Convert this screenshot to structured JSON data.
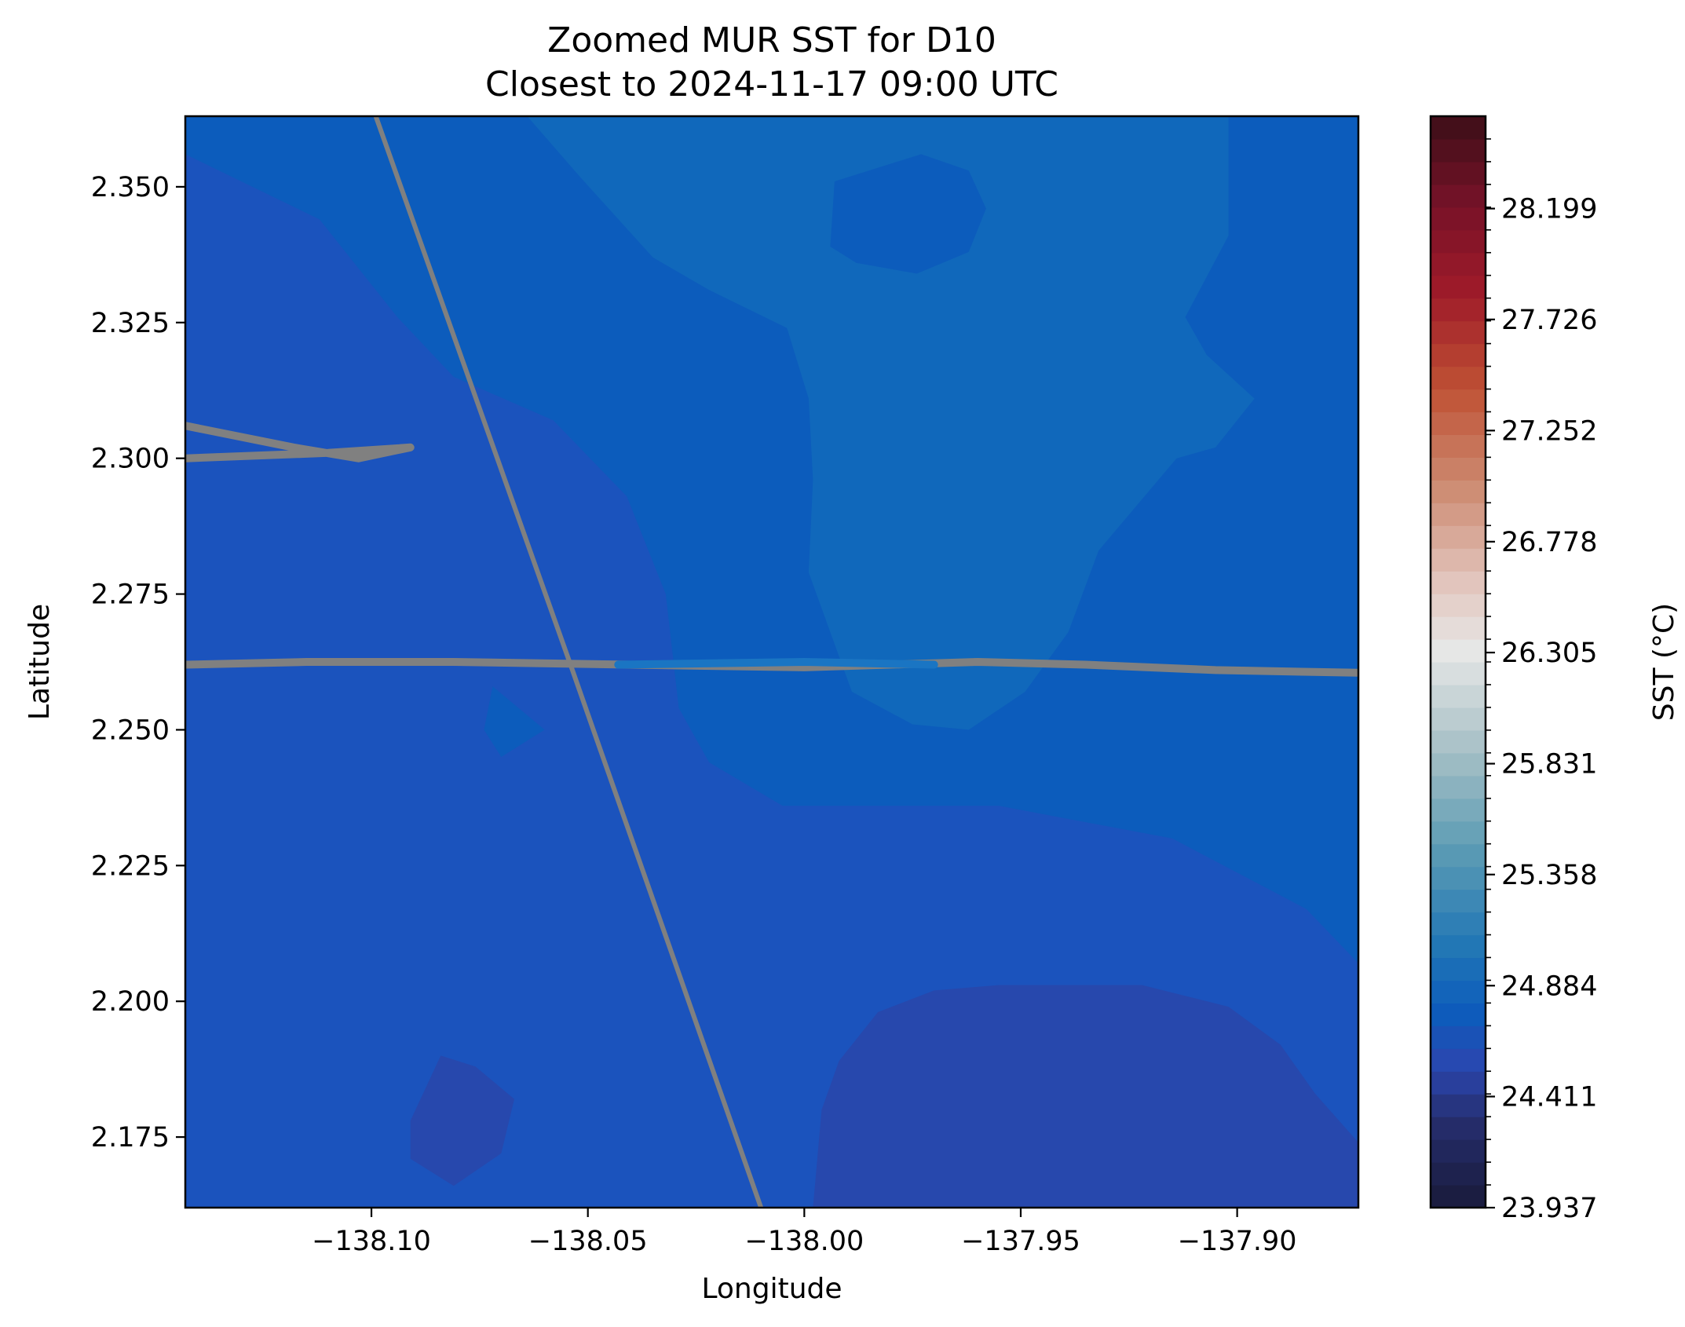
{
  "chart_data": {
    "type": "heatmap",
    "title_line1": "Zoomed MUR SST for D10",
    "title_line2": "Closest to 2024-11-17 09:00 UTC",
    "xlabel": "Longitude",
    "ylabel": "Latitude",
    "xlim": [
      -138.143,
      -137.872
    ],
    "ylim": [
      2.162,
      2.363
    ],
    "xticks": [
      {
        "value": -138.1,
        "label": "−138.10"
      },
      {
        "value": -138.05,
        "label": "−138.05"
      },
      {
        "value": -138.0,
        "label": "−138.00"
      },
      {
        "value": -137.95,
        "label": "−137.95"
      },
      {
        "value": -137.9,
        "label": "−137.90"
      }
    ],
    "yticks": [
      {
        "value": 2.175,
        "label": "2.175"
      },
      {
        "value": 2.2,
        "label": "2.200"
      },
      {
        "value": 2.225,
        "label": "2.225"
      },
      {
        "value": 2.25,
        "label": "2.250"
      },
      {
        "value": 2.275,
        "label": "2.275"
      },
      {
        "value": 2.3,
        "label": "2.300"
      },
      {
        "value": 2.325,
        "label": "2.325"
      },
      {
        "value": 2.35,
        "label": "2.350"
      }
    ],
    "colorbar": {
      "label": "SST (°C)",
      "min": 23.937,
      "max": 28.593,
      "n_levels": 48,
      "ticks": [
        {
          "value": 23.937,
          "label": "23.937"
        },
        {
          "value": 24.411,
          "label": "24.411"
        },
        {
          "value": 24.884,
          "label": "24.884"
        },
        {
          "value": 25.358,
          "label": "25.358"
        },
        {
          "value": 25.831,
          "label": "25.831"
        },
        {
          "value": 26.305,
          "label": "26.305"
        },
        {
          "value": 26.778,
          "label": "26.778"
        },
        {
          "value": 27.252,
          "label": "27.252"
        },
        {
          "value": 27.726,
          "label": "27.726"
        },
        {
          "value": 28.199,
          "label": "28.199"
        }
      ],
      "stops": [
        {
          "t": 0.0,
          "color": "#191b3a"
        },
        {
          "t": 0.08,
          "color": "#262e6e"
        },
        {
          "t": 0.13,
          "color": "#2a47b0"
        },
        {
          "t": 0.18,
          "color": "#0c5cbc"
        },
        {
          "t": 0.24,
          "color": "#2277b5"
        },
        {
          "t": 0.33,
          "color": "#5d9cb4"
        },
        {
          "t": 0.42,
          "color": "#a7c0c6"
        },
        {
          "t": 0.51,
          "color": "#e6e7e6"
        },
        {
          "t": 0.57,
          "color": "#e3c7c0"
        },
        {
          "t": 0.66,
          "color": "#cd8b72"
        },
        {
          "t": 0.75,
          "color": "#bf5134"
        },
        {
          "t": 0.84,
          "color": "#9e1a29"
        },
        {
          "t": 0.92,
          "color": "#761228"
        },
        {
          "t": 1.0,
          "color": "#3c0e18"
        }
      ]
    },
    "field_colors": {
      "level_24_41": "#2748ad",
      "level_24_51": "#1b53bd",
      "level_24_61": "#0c5cbc",
      "level_24_71": "#1068bb"
    },
    "contour_regions": [
      {
        "level": 24.51,
        "fill": "level_24_51",
        "path": [
          [
            -138.143,
            2.162
          ],
          [
            -137.872,
            2.162
          ],
          [
            -137.872,
            2.363
          ],
          [
            -138.143,
            2.363
          ]
        ]
      },
      {
        "level": 24.61,
        "fill": "level_24_61",
        "path": [
          [
            -138.101,
            2.363
          ],
          [
            -137.872,
            2.363
          ],
          [
            -137.872,
            2.207
          ],
          [
            -137.884,
            2.217
          ],
          [
            -137.915,
            2.23
          ],
          [
            -137.955,
            2.236
          ],
          [
            -137.978,
            2.236
          ],
          [
            -138.005,
            2.236
          ],
          [
            -138.022,
            2.244
          ],
          [
            -138.029,
            2.254
          ],
          [
            -138.032,
            2.275
          ],
          [
            -138.041,
            2.293
          ],
          [
            -138.058,
            2.307
          ],
          [
            -138.081,
            2.315
          ],
          [
            -138.094,
            2.326
          ],
          [
            -138.112,
            2.344
          ],
          [
            -138.143,
            2.356
          ],
          [
            -138.143,
            2.363
          ]
        ]
      },
      {
        "level": 24.71,
        "fill": "level_24_71",
        "path": [
          [
            -138.064,
            2.363
          ],
          [
            -137.902,
            2.363
          ],
          [
            -137.902,
            2.341
          ],
          [
            -137.912,
            2.326
          ],
          [
            -137.907,
            2.319
          ],
          [
            -137.896,
            2.311
          ],
          [
            -137.905,
            2.302
          ],
          [
            -137.914,
            2.3
          ],
          [
            -137.932,
            2.283
          ],
          [
            -137.939,
            2.268
          ],
          [
            -137.949,
            2.257
          ],
          [
            -137.962,
            2.25
          ],
          [
            -137.975,
            2.251
          ],
          [
            -137.989,
            2.257
          ],
          [
            -137.994,
            2.268
          ],
          [
            -137.999,
            2.279
          ],
          [
            -137.998,
            2.296
          ],
          [
            -137.999,
            2.311
          ],
          [
            -138.004,
            2.324
          ],
          [
            -138.022,
            2.331
          ],
          [
            -138.035,
            2.337
          ],
          [
            -138.052,
            2.352
          ]
        ]
      },
      {
        "level": 24.61,
        "fill": "level_24_61",
        "path": [
          [
            -137.993,
            2.351
          ],
          [
            -137.973,
            2.356
          ],
          [
            -137.962,
            2.353
          ],
          [
            -137.958,
            2.346
          ],
          [
            -137.962,
            2.338
          ],
          [
            -137.974,
            2.334
          ],
          [
            -137.988,
            2.336
          ],
          [
            -137.994,
            2.339
          ]
        ]
      },
      {
        "level": 24.61,
        "fill": "level_24_61",
        "path": [
          [
            -138.072,
            2.258
          ],
          [
            -138.06,
            2.25
          ],
          [
            -138.07,
            2.245
          ],
          [
            -138.074,
            2.25
          ]
        ]
      },
      {
        "level": 24.41,
        "fill": "level_24_41",
        "path": [
          [
            -137.998,
            2.162
          ],
          [
            -137.872,
            2.162
          ],
          [
            -137.872,
            2.174
          ],
          [
            -137.882,
            2.183
          ],
          [
            -137.89,
            2.192
          ],
          [
            -137.902,
            2.199
          ],
          [
            -137.922,
            2.203
          ],
          [
            -137.955,
            2.203
          ],
          [
            -137.97,
            2.202
          ],
          [
            -137.983,
            2.198
          ],
          [
            -137.992,
            2.189
          ],
          [
            -137.996,
            2.18
          ]
        ]
      },
      {
        "level": 24.41,
        "fill": "level_24_41",
        "path": [
          [
            -138.091,
            2.178
          ],
          [
            -138.084,
            2.19
          ],
          [
            -138.076,
            2.188
          ],
          [
            -138.067,
            2.182
          ],
          [
            -138.07,
            2.172
          ],
          [
            -138.081,
            2.166
          ],
          [
            -138.091,
            2.171
          ]
        ]
      }
    ],
    "tracks": [
      {
        "color": "#808080",
        "name": "diagonal track",
        "points": [
          [
            -138.099,
            2.363
          ],
          [
            -138.054,
            2.262
          ],
          [
            -138.01,
            2.162
          ]
        ]
      },
      {
        "color": "#808080",
        "name": "east-west track",
        "points": [
          [
            -138.143,
            2.262
          ],
          [
            -138.115,
            2.2625
          ],
          [
            -138.081,
            2.2625
          ],
          [
            -138.04,
            2.262
          ],
          [
            -138.0,
            2.2615
          ],
          [
            -137.96,
            2.2625
          ],
          [
            -137.935,
            2.262
          ],
          [
            -137.905,
            2.261
          ],
          [
            -137.872,
            2.2605
          ]
        ]
      },
      {
        "color": "#808080",
        "name": "western loop track",
        "points": [
          [
            -138.143,
            2.306
          ],
          [
            -138.118,
            2.302
          ],
          [
            -138.103,
            2.3
          ],
          [
            -138.091,
            2.302
          ],
          [
            -138.11,
            2.301
          ],
          [
            -138.143,
            2.3
          ]
        ]
      },
      {
        "color": "#1a75c3",
        "name": "blue segment",
        "points": [
          [
            -138.043,
            2.262
          ],
          [
            -138.0,
            2.2625
          ],
          [
            -137.97,
            2.262
          ]
        ]
      }
    ]
  }
}
